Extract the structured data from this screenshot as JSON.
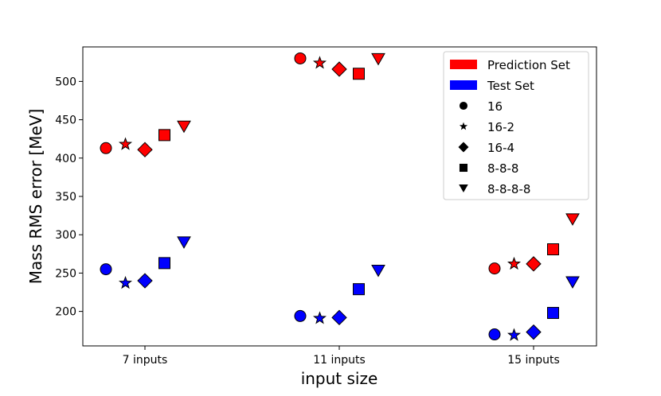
{
  "chart_data": {
    "type": "scatter",
    "xlabel": "input size",
    "ylabel": "Mass RMS error [MeV]",
    "categories": [
      "7 inputs",
      "11 inputs",
      "15 inputs"
    ],
    "ylim": [
      155,
      545
    ],
    "yticks": [
      200,
      250,
      300,
      350,
      400,
      450,
      500
    ],
    "grid": false,
    "legend_position": "top-right",
    "architectures": [
      {
        "name": "16",
        "marker": "circle"
      },
      {
        "name": "16-2",
        "marker": "star"
      },
      {
        "name": "16-4",
        "marker": "diamond"
      },
      {
        "name": "8-8-8",
        "marker": "square"
      },
      {
        "name": "8-8-8-8",
        "marker": "triangle-down"
      }
    ],
    "series": [
      {
        "name": "Prediction Set",
        "color": "#ff0000",
        "values": [
          [
            413,
            418,
            411,
            430,
            441
          ],
          [
            530,
            524,
            516,
            510,
            529
          ],
          [
            256,
            262,
            262,
            281,
            320
          ]
        ]
      },
      {
        "name": "Test Set",
        "color": "#0000ff",
        "values": [
          [
            255,
            237,
            240,
            263,
            290
          ],
          [
            194,
            191,
            192,
            229,
            253
          ],
          [
            170,
            169,
            173,
            198,
            238
          ]
        ]
      }
    ]
  }
}
